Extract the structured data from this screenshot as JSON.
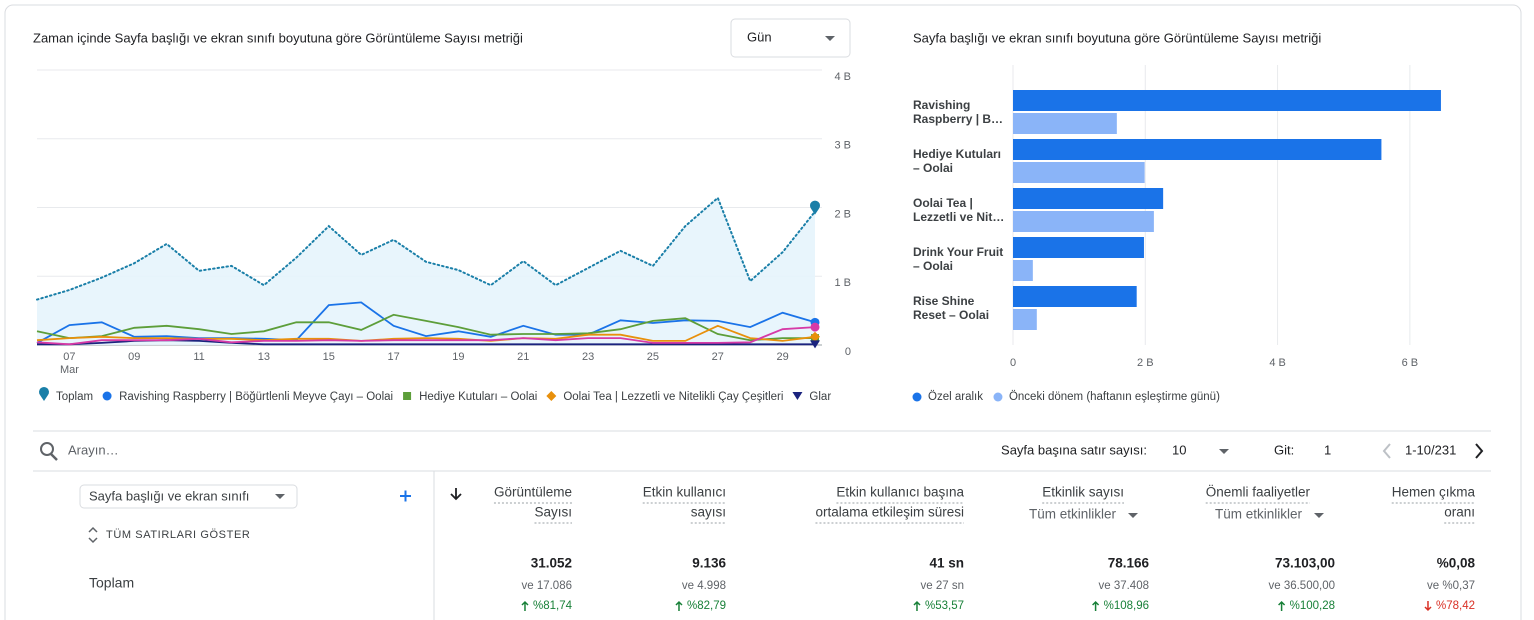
{
  "chart_data": [
    {
      "type": "line",
      "title": "Zaman içinde Sayfa başlığı ve ekran sınıfı boyutuna göre Görüntüleme Sayısı metriği",
      "categories": [
        null,
        "07",
        null,
        "09",
        null,
        "11",
        null,
        "13",
        null,
        "15",
        null,
        "17",
        null,
        "19",
        null,
        "21",
        null,
        "23",
        null,
        "25",
        null,
        "27",
        null,
        "29",
        null
      ],
      "x_sublabel": "Mar",
      "ylim": [
        0,
        4000
      ],
      "yticks": [
        0,
        {
          "value": 1000,
          "label": "1 B"
        },
        {
          "value": 2000,
          "label": "2 B"
        },
        {
          "value": 3000,
          "label": "3 B"
        },
        {
          "value": 4000,
          "label": "4 B"
        }
      ],
      "grid": true,
      "series": [
        {
          "name": "Toplam",
          "color": "#1a7fa8",
          "values": [
            660,
            800,
            980,
            1190,
            1470,
            1080,
            1150,
            870,
            1270,
            1730,
            1310,
            1530,
            1210,
            1090,
            870,
            1220,
            870,
            1120,
            1370,
            1150,
            1730,
            2140,
            930,
            1350,
            1940
          ]
        },
        {
          "name": "Ravishing Raspberry | Böğürtlenli Meyve Çayı – Oolai",
          "color": "#1a73e8",
          "values": [
            30,
            290,
            330,
            120,
            130,
            100,
            100,
            90,
            70,
            580,
            620,
            280,
            130,
            200,
            120,
            280,
            150,
            150,
            360,
            320,
            360,
            350,
            260,
            470,
            330
          ]
        },
        {
          "name": "Hediye Kutuları – Oolai",
          "color": "#5d9e3a",
          "values": [
            200,
            100,
            130,
            250,
            280,
            230,
            160,
            200,
            330,
            330,
            220,
            440,
            350,
            260,
            150,
            160,
            160,
            170,
            230,
            350,
            390,
            160,
            70,
            100,
            100
          ]
        },
        {
          "name": "Oolai Tea | Lezzetli ve Nitelikli Çay Çeşitleri",
          "color": "#e8900c",
          "values": [
            70,
            100,
            120,
            100,
            100,
            90,
            90,
            70,
            90,
            90,
            60,
            90,
            100,
            90,
            60,
            100,
            90,
            150,
            150,
            60,
            60,
            280,
            100,
            60,
            120
          ]
        },
        {
          "name": "Glar",
          "color": "#1b237e",
          "values": [
            10,
            10,
            30,
            60,
            70,
            60,
            30,
            10,
            10,
            10,
            10,
            10,
            10,
            10,
            10,
            10,
            10,
            10,
            10,
            10,
            10,
            10,
            10,
            10,
            10
          ]
        },
        {
          "color": "#d63aa6",
          "values": [
            40,
            10,
            70,
            70,
            70,
            90,
            40,
            60,
            60,
            70,
            60,
            70,
            70,
            70,
            70,
            100,
            70,
            100,
            100,
            30,
            30,
            30,
            40,
            230,
            260
          ]
        }
      ]
    },
    {
      "type": "hbar",
      "title": "Sayfa başlığı ve ekran sınıfı boyutuna göre Görüntüleme Sayısı metriği",
      "categories": [
        [
          "Ravishing",
          "Raspberry | B…"
        ],
        [
          "Hediye Kutuları",
          "– Oolai"
        ],
        [
          "Oolai Tea |",
          "Lezzetli ve Nit…"
        ],
        [
          "Drink Your Fruit",
          "– Oolai"
        ],
        [
          "Rise Shine",
          "Reset – Oolai"
        ]
      ],
      "xlim": [
        0,
        7000
      ],
      "xticks": [
        0,
        {
          "value": 2000,
          "label": "2 B"
        },
        {
          "value": 4000,
          "label": "4 B"
        },
        {
          "value": 6000,
          "label": "6 B"
        }
      ],
      "grid": true,
      "series": [
        {
          "name": "Özel aralık",
          "color": "#1a73e8",
          "values": [
            6470,
            5570,
            2270,
            1980,
            1870
          ]
        },
        {
          "name": "Önceki dönem (haftanın eşleştirme günü)",
          "color": "#8ab4f8",
          "values": [
            1570,
            1990,
            2130,
            300,
            360
          ]
        }
      ]
    }
  ],
  "controls": {
    "granularity": "Gün",
    "search_placeholder": "Arayın…",
    "rows_label": "Sayfa başına satır sayısı:",
    "rows_value": "10",
    "goto_label": "Git:",
    "goto_value": "1",
    "range": "1-10/231"
  },
  "table": {
    "dimension": "Sayfa başlığı ve ekran sınıfı",
    "show_all": "TÜM SATIRLARI GÖSTER",
    "total_label": "Toplam",
    "columns": [
      {
        "header": [
          "Görüntüleme",
          "Sayısı"
        ],
        "total": "31.052",
        "compare": "ve 17.086",
        "change": "%81,74",
        "trend": "up"
      },
      {
        "header": [
          "Etkin kullanıcı",
          "sayısı"
        ],
        "total": "9.136",
        "compare": "ve 4.998",
        "change": "%82,79",
        "trend": "up"
      },
      {
        "header": [
          "Etkin kullanıcı başına",
          "ortalama etkileşim süresi"
        ],
        "total": "41 sn",
        "compare": "ve 27 sn",
        "change": "%53,57",
        "trend": "up"
      },
      {
        "header": [
          "Etkinlik sayısı"
        ],
        "sub": "Tüm etkinlikler",
        "total": "78.166",
        "compare": "ve 37.408",
        "change": "%108,96",
        "trend": "up"
      },
      {
        "header": [
          "Önemli faaliyetler"
        ],
        "sub": "Tüm etkinlikler",
        "total": "73.103,00",
        "compare": "ve 36.500,00",
        "change": "%100,28",
        "trend": "up"
      },
      {
        "header": [
          "Hemen çıkma",
          "oranı"
        ],
        "total": "%0,08",
        "compare": "ve %0,37",
        "change": "%78,42",
        "trend": "down"
      }
    ]
  }
}
